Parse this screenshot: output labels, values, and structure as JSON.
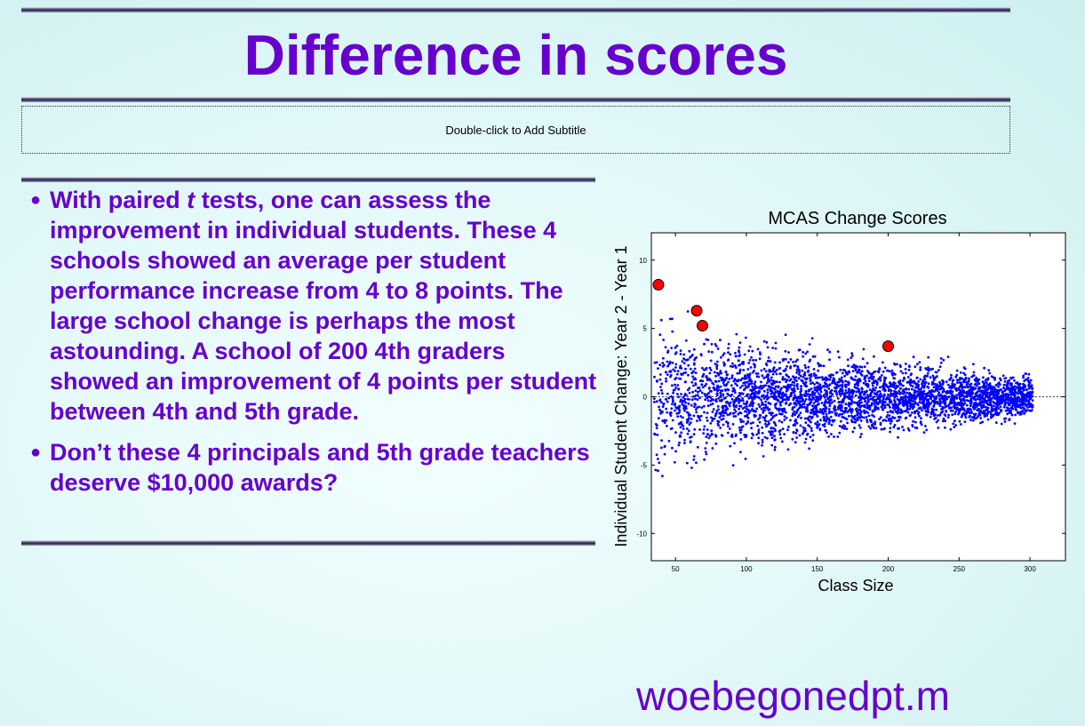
{
  "slide": {
    "title": "Difference in scores",
    "subtitle_placeholder": "Double-click to Add Subtitle",
    "bullets": [
      {
        "before": "With paired ",
        "emphasis": "t",
        "after": " tests, one can assess the improvement in individual students. These 4 schools showed an average per student performance increase from 4 to 8 points. The large school change is perhaps the most astounding. A school of 200 4th graders showed an improvement of 4 points per student between 4th and 5th grade."
      },
      {
        "before": "Don’t these 4 principals and 5th grade teachers deserve $10,000 awards?",
        "emphasis": "",
        "after": ""
      }
    ],
    "footer": "woebegonedpt.m"
  },
  "colors": {
    "accent": "#6600cc",
    "scatter_points": "#0000ff",
    "highlight_points": "#ff0000"
  },
  "chart_data": {
    "type": "scatter",
    "title": "MCAS Change Scores",
    "xlabel": "Class Size",
    "ylabel": "Individual Student Change: Year 2 - Year 1",
    "xlim": [
      33,
      325
    ],
    "ylim": [
      -12,
      12
    ],
    "xticks": [
      50,
      100,
      150,
      200,
      250,
      300
    ],
    "yticks": [
      10,
      5,
      0,
      -5,
      -10
    ],
    "reference_line": 0,
    "series": [
      {
        "role": "highlighted schools",
        "x": [
          38,
          65,
          69,
          200
        ],
        "y": [
          8.2,
          6.3,
          5.2,
          3.7
        ]
      }
    ],
    "cloud": {
      "description_x_range": [
        35,
        302
      ],
      "spread_at_small_class": 6.5,
      "spread_at_large_class": 1.7
    }
  }
}
